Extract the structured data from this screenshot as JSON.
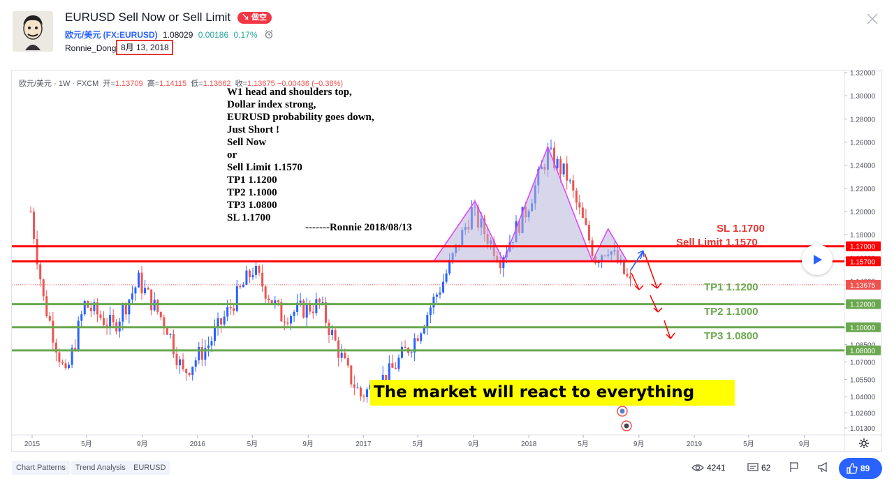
{
  "header": {
    "title": "EURUSD Sell Now or Sell Limit",
    "badge": "↘ 做空",
    "symbol_name": "欧元/美元 (FX:EURUSD)",
    "price": "1.08029",
    "change": "0.00186",
    "change_pct": "0.17%",
    "author": "Ronnie_Dong",
    "date": "8月 13, 2018"
  },
  "legend": {
    "symbol": "欧元/美元 · 1W · FXCM",
    "open_label": "开=",
    "open": "1.13709",
    "high_label": "高=",
    "high": "1.14115",
    "low_label": "低=",
    "low": "1.13662",
    "close_label": "收=",
    "close": "1.13675",
    "change": "−0.00436 (−0.38%)"
  },
  "annotations": {
    "note_lines": [
      "W1  head and shoulders top,",
      "Dollar index strong,",
      "EURUSD  probability goes down,",
      "Just Short !",
      "Sell Now",
      "or",
      "Sell Limit 1.1570",
      "TP1 1.1200",
      "TP2 1.1000",
      "TP3 1.0800",
      "SL   1.1700"
    ],
    "signature": "-------Ronnie 2018/08/13",
    "banner": "The market will react to everything",
    "levels": {
      "sl": "SL  1.1700",
      "sell_limit": "Sell Limit 1.1570",
      "tp1": "TP1  1.1200",
      "tp2": "TP2  1.1000",
      "tp3": "TP3  1.0800"
    }
  },
  "chart_data": {
    "type": "candlestick",
    "timeframe": "1W",
    "y_axis_ticks": [
      "1.32000",
      "1.30000",
      "1.28000",
      "1.26000",
      "1.24000",
      "1.22000",
      "1.20000",
      "1.18000",
      "1.16000",
      "1.14000",
      "1.12000",
      "1.10000",
      "1.08500",
      "1.07000",
      "1.05500",
      "1.04000",
      "1.02600",
      "1.01300"
    ],
    "x_axis_ticks": [
      "2015",
      "5月",
      "9月",
      "2016",
      "5月",
      "9月",
      "2017",
      "5月",
      "9月",
      "2018",
      "5月",
      "9月",
      "2019",
      "5月",
      "9月"
    ],
    "price_labels": {
      "sl": "1.17000",
      "sell_limit": "1.15700",
      "last": "1.13675",
      "tp1": "1.12000",
      "tp2": "1.10000",
      "tp3": "1.08000"
    },
    "ylim": [
      1.005,
      1.325
    ],
    "weekly_close_path": [
      [
        "2014-12-29",
        1.2
      ],
      [
        "2015-01-26",
        1.124
      ],
      [
        "2015-03-16",
        1.056
      ],
      [
        "2015-04-27",
        1.12
      ],
      [
        "2015-06-29",
        1.1
      ],
      [
        "2015-08-24",
        1.14
      ],
      [
        "2015-10-26",
        1.1
      ],
      [
        "2015-11-30",
        1.06
      ],
      [
        "2016-01-25",
        1.085
      ],
      [
        "2016-05-02",
        1.15
      ],
      [
        "2016-07-04",
        1.11
      ],
      [
        "2016-09-26",
        1.12
      ],
      [
        "2016-11-28",
        1.06
      ],
      [
        "2016-12-26",
        1.041
      ],
      [
        "2017-02-27",
        1.06
      ],
      [
        "2017-04-24",
        1.09
      ],
      [
        "2017-06-26",
        1.14
      ],
      [
        "2017-08-28",
        1.2
      ],
      [
        "2017-10-30",
        1.16
      ],
      [
        "2017-12-25",
        1.2
      ],
      [
        "2018-02-12",
        1.25
      ],
      [
        "2018-03-26",
        1.23
      ],
      [
        "2018-05-28",
        1.16
      ],
      [
        "2018-06-25",
        1.17
      ],
      [
        "2018-08-13",
        1.137
      ]
    ],
    "patterns": {
      "head_and_shoulders": [
        [
          "2017-06-05",
          1.157
        ],
        [
          "2017-09-04",
          1.209
        ],
        [
          "2017-11-06",
          1.157
        ],
        [
          "2018-02-12",
          1.256
        ],
        [
          "2018-05-21",
          1.157
        ],
        [
          "2018-06-25",
          1.185
        ],
        [
          "2018-08-06",
          1.157
        ]
      ]
    },
    "projection_arrows": true
  },
  "footer": {
    "tags": [
      "Chart Patterns",
      "Trend Analysis",
      "EURUSD"
    ],
    "views": "4241",
    "comments": "62",
    "likes": "89"
  },
  "colors": {
    "up": "#2962ff",
    "down": "#ef5350",
    "resistance": "#ff0000",
    "target": "#6aa84f",
    "pattern_fill": "#b8b4d8",
    "pattern_line": "#e040fb",
    "banner": "#ffff00"
  }
}
